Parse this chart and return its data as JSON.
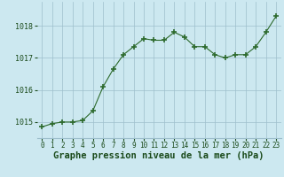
{
  "x": [
    0,
    1,
    2,
    3,
    4,
    5,
    6,
    7,
    8,
    9,
    10,
    11,
    12,
    13,
    14,
    15,
    16,
    17,
    18,
    19,
    20,
    21,
    22,
    23
  ],
  "y": [
    1014.85,
    1014.95,
    1015.0,
    1015.0,
    1015.05,
    1015.35,
    1016.1,
    1016.65,
    1017.1,
    1017.35,
    1017.6,
    1017.55,
    1017.55,
    1017.8,
    1017.65,
    1017.35,
    1017.35,
    1017.1,
    1017.0,
    1017.1,
    1017.1,
    1017.35,
    1017.8,
    1018.3
  ],
  "line_color": "#2d6a2d",
  "marker_color": "#2d6a2d",
  "bg_color": "#cce8f0",
  "grid_color": "#9dbfcc",
  "xlabel": "Graphe pression niveau de la mer (hPa)",
  "xlabel_color": "#1a4a1a",
  "xlabel_fontsize": 7.5,
  "ylim": [
    1014.5,
    1018.75
  ],
  "yticks": [
    1015,
    1016,
    1017,
    1018
  ],
  "xticks": [
    0,
    1,
    2,
    3,
    4,
    5,
    6,
    7,
    8,
    9,
    10,
    11,
    12,
    13,
    14,
    15,
    16,
    17,
    18,
    19,
    20,
    21,
    22,
    23
  ],
  "tick_color": "#1a4a1a",
  "tick_fontsize": 5.5,
  "ytick_fontsize": 6.0
}
